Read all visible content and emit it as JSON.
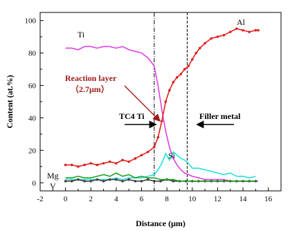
{
  "chart_data": {
    "type": "line",
    "xlabel": "Distance (μm)",
    "ylabel": "Content (at.%)",
    "xlim": [
      -2,
      17
    ],
    "ylim": [
      -5,
      105
    ],
    "xticks": [
      -2,
      0,
      2,
      4,
      6,
      8,
      10,
      12,
      14,
      16
    ],
    "yticks": [
      0,
      20,
      40,
      60,
      80,
      100
    ],
    "series": [
      {
        "name": "Ti",
        "color": "#e040e0",
        "marker": "none",
        "x": [
          0,
          0.5,
          1,
          1.5,
          2,
          2.5,
          3,
          3.5,
          4,
          4.5,
          5,
          5.5,
          6,
          6.5,
          7,
          7.3,
          7.6,
          7.9,
          8.2,
          8.5,
          8.8,
          9.1,
          9.4,
          9.7,
          10,
          10.5,
          11,
          11.5,
          12,
          12.5,
          13,
          13.5,
          14,
          14.5,
          15,
          15.2
        ],
        "y": [
          83,
          83,
          82,
          84,
          84,
          83,
          84,
          84,
          83,
          84,
          82,
          81,
          80,
          77,
          72,
          60,
          45,
          32,
          22,
          15,
          11,
          8,
          6,
          5,
          4,
          3,
          2,
          2,
          2,
          2,
          1,
          1,
          1,
          1,
          1,
          1
        ]
      },
      {
        "name": "Al",
        "color": "#e02020",
        "marker": "circle",
        "x": [
          0,
          0.5,
          1,
          1.5,
          2,
          2.5,
          3,
          3.5,
          4,
          4.5,
          5,
          5.5,
          6,
          6.5,
          7,
          7.3,
          7.6,
          7.9,
          8.2,
          8.5,
          8.8,
          9.1,
          9.4,
          9.7,
          10,
          10.3,
          10.6,
          11,
          11.5,
          12,
          12.5,
          13,
          13.5,
          14,
          14.5,
          15,
          15.2
        ],
        "y": [
          11,
          11,
          10,
          11,
          12,
          11,
          12,
          13,
          12,
          14,
          13,
          15,
          17,
          19,
          22,
          28,
          38,
          50,
          57,
          62,
          65,
          67,
          70,
          72,
          76,
          80,
          83,
          86,
          89,
          90,
          91,
          93,
          95,
          94,
          93,
          94,
          94
        ]
      },
      {
        "name": "Si",
        "color": "#20e0e0",
        "marker": "none",
        "x": [
          0,
          0.5,
          1,
          1.5,
          2,
          2.5,
          3,
          3.5,
          4,
          4.5,
          5,
          5.5,
          6,
          6.5,
          7,
          7.3,
          7.6,
          7.9,
          8.2,
          8.5,
          8.8,
          9.1,
          9.4,
          9.7,
          10,
          10.5,
          11,
          11.5,
          12,
          12.5,
          13,
          13.5,
          14,
          14.5,
          15
        ],
        "y": [
          2,
          2,
          2,
          2,
          2,
          2,
          2,
          2,
          3,
          2,
          3,
          3,
          3,
          4,
          5,
          8,
          12,
          18,
          14,
          19,
          17,
          15,
          14,
          12,
          9,
          9,
          8,
          7,
          6,
          5,
          6,
          4,
          4,
          3,
          4
        ]
      },
      {
        "name": "Mg",
        "color": "#404040",
        "marker": "circle",
        "x": [
          0,
          0.5,
          1,
          1.5,
          2,
          2.5,
          3,
          3.5,
          4,
          4.5,
          5,
          5.5,
          6,
          6.5,
          7,
          7.5,
          8,
          8.5,
          9,
          9.5,
          10,
          10.5,
          11,
          11.5,
          12,
          12.5,
          13,
          13.5,
          14,
          14.5,
          15
        ],
        "y": [
          1,
          1,
          2,
          1,
          1,
          2,
          1,
          2,
          2,
          1,
          2,
          1,
          1,
          2,
          1,
          1,
          2,
          1,
          1,
          1,
          1,
          1,
          1,
          1,
          1,
          1,
          1,
          1,
          1,
          1,
          1
        ]
      },
      {
        "name": "V",
        "color": "#20a020",
        "marker": "none",
        "x": [
          0,
          0.5,
          1,
          1.5,
          2,
          2.5,
          3,
          3.5,
          4,
          4.5,
          5,
          5.5,
          6,
          6.5,
          7,
          7.5,
          8,
          8.5,
          9,
          9.5,
          10,
          10.5,
          11,
          11.5,
          12,
          12.5,
          13,
          13.5,
          14,
          14.5,
          15
        ],
        "y": [
          3,
          3,
          4,
          3,
          3,
          4,
          5,
          4,
          6,
          4,
          5,
          3,
          4,
          3,
          3,
          2,
          2,
          2,
          1,
          1,
          1,
          1,
          1,
          1,
          1,
          1,
          1,
          1,
          1,
          1,
          1
        ]
      }
    ],
    "vlines": [
      7.0,
      9.6
    ],
    "grid": false
  },
  "labels": {
    "ti": "Ti",
    "al": "Al",
    "si": "Si",
    "mg": "Mg",
    "v": "V",
    "reaction_layer": "Reaction layer",
    "reaction_thickness": "（2.7μm）",
    "tc4": "TC4 Ti",
    "filler": "Filler metal"
  },
  "colors": {
    "annotation_red": "#a01818",
    "axis": "#000000"
  }
}
